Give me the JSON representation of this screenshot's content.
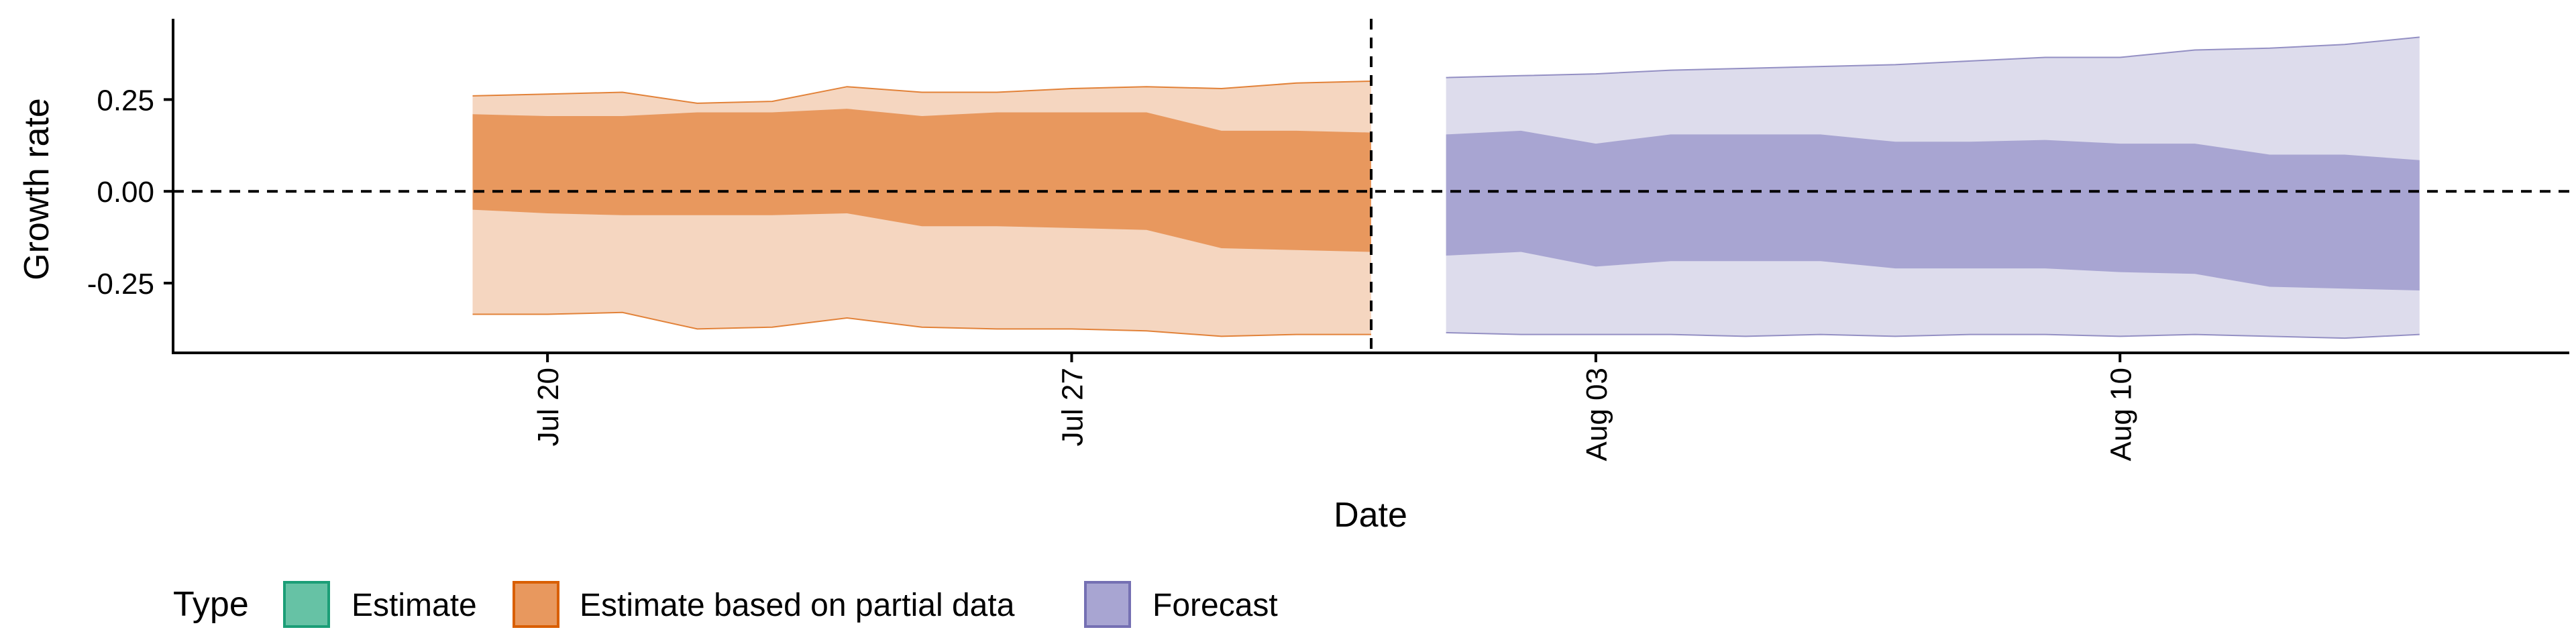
{
  "chart_data": {
    "type": "area",
    "xlabel": "Date",
    "ylabel": "Growth rate",
    "xlim": [
      "2020-07-15",
      "2020-08-16"
    ],
    "ylim": [
      -0.44,
      0.47
    ],
    "x_ticks": [
      "Jul 20",
      "Jul 27",
      "Aug 03",
      "Aug 10"
    ],
    "x_tick_dates": [
      "2020-07-20",
      "2020-07-27",
      "2020-08-03",
      "2020-08-10"
    ],
    "y_ticks": [
      0.25,
      0.0,
      -0.25
    ],
    "y_tick_labels": [
      "0.25",
      "0.00",
      "-0.25"
    ],
    "hline": 0.0,
    "vline": "2020-07-31",
    "grid": false,
    "legend": {
      "title": "Type",
      "position": "bottom-left",
      "items": [
        {
          "label": "Estimate",
          "fill": "#66c2a5",
          "stroke": "#1b9e77"
        },
        {
          "label": "Estimate based on partial data",
          "fill": "#e8985e",
          "stroke": "#d95f02"
        },
        {
          "label": "Forecast",
          "fill": "#a8a5d2",
          "stroke": "#7570b3"
        }
      ]
    },
    "series": [
      {
        "name": "Estimate based on partial data",
        "color": "#d95f02",
        "inner_fill": "#e8985e",
        "outer_fill": "#f5d6c0",
        "x": [
          "2020-07-19",
          "2020-07-20",
          "2020-07-21",
          "2020-07-22",
          "2020-07-23",
          "2020-07-24",
          "2020-07-25",
          "2020-07-26",
          "2020-07-27",
          "2020-07-28",
          "2020-07-29",
          "2020-07-30",
          "2020-07-31"
        ],
        "outer_upper": [
          0.26,
          0.265,
          0.27,
          0.24,
          0.245,
          0.285,
          0.27,
          0.27,
          0.28,
          0.285,
          0.28,
          0.295,
          0.3
        ],
        "outer_lower": [
          -0.335,
          -0.335,
          -0.33,
          -0.375,
          -0.37,
          -0.345,
          -0.37,
          -0.375,
          -0.375,
          -0.38,
          -0.395,
          -0.39,
          -0.39
        ],
        "inner_upper": [
          0.21,
          0.205,
          0.205,
          0.215,
          0.215,
          0.225,
          0.205,
          0.215,
          0.215,
          0.215,
          0.165,
          0.165,
          0.16
        ],
        "inner_lower": [
          -0.05,
          -0.06,
          -0.065,
          -0.065,
          -0.065,
          -0.06,
          -0.095,
          -0.095,
          -0.1,
          -0.105,
          -0.155,
          -0.16,
          -0.165
        ]
      },
      {
        "name": "Forecast",
        "color": "#7570b3",
        "inner_fill": "#a8a5d2",
        "outer_fill": "#dddcec",
        "x": [
          "2020-08-01",
          "2020-08-02",
          "2020-08-03",
          "2020-08-04",
          "2020-08-05",
          "2020-08-06",
          "2020-08-07",
          "2020-08-08",
          "2020-08-09",
          "2020-08-10",
          "2020-08-11",
          "2020-08-12",
          "2020-08-13",
          "2020-08-14"
        ],
        "outer_upper": [
          0.31,
          0.315,
          0.32,
          0.33,
          0.335,
          0.34,
          0.345,
          0.355,
          0.365,
          0.365,
          0.385,
          0.39,
          0.4,
          0.42
        ],
        "outer_lower": [
          -0.385,
          -0.39,
          -0.39,
          -0.39,
          -0.395,
          -0.39,
          -0.395,
          -0.39,
          -0.39,
          -0.395,
          -0.39,
          -0.395,
          -0.4,
          -0.39
        ],
        "inner_upper": [
          0.155,
          0.165,
          0.13,
          0.155,
          0.155,
          0.155,
          0.135,
          0.135,
          0.14,
          0.13,
          0.13,
          0.1,
          0.1,
          0.085
        ],
        "inner_lower": [
          -0.175,
          -0.165,
          -0.205,
          -0.19,
          -0.19,
          -0.19,
          -0.21,
          -0.21,
          -0.21,
          -0.22,
          -0.225,
          -0.26,
          -0.265,
          -0.27
        ]
      }
    ]
  }
}
